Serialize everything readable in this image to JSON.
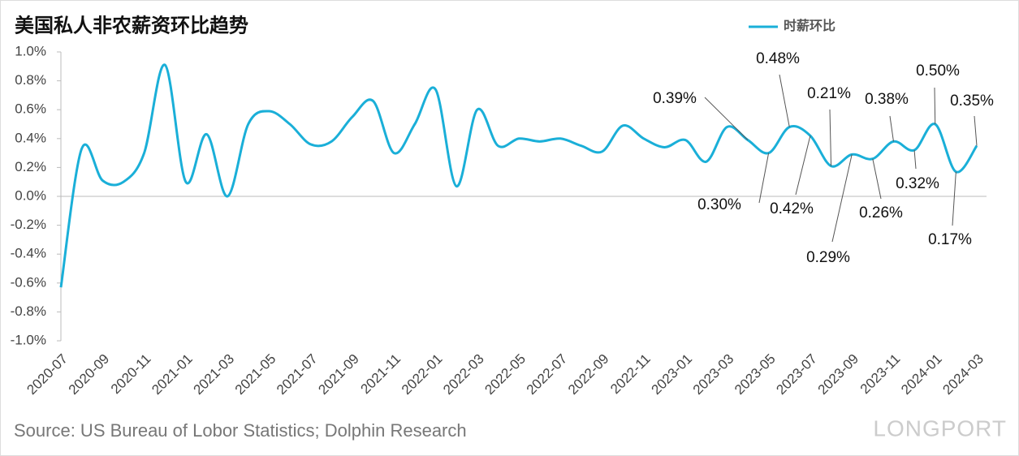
{
  "chart_data": {
    "type": "line",
    "title": "美国私人非农薪资环比趋势",
    "source": "Source: US Bureau of Lobor Statistics; Dolphin Research",
    "watermark": "LONGPORT",
    "categories": [
      "2020-07",
      null,
      "2020-09",
      null,
      "2020-11",
      null,
      "2021-01",
      null,
      "2021-03",
      null,
      "2021-05",
      null,
      "2021-07",
      null,
      "2021-09",
      null,
      "2021-11",
      null,
      "2022-01",
      null,
      "2022-03",
      null,
      "2022-05",
      null,
      "2022-07",
      null,
      "2022-09",
      null,
      "2022-11",
      null,
      "2023-01",
      null,
      "2023-03",
      null,
      "2023-05",
      null,
      "2023-07",
      null,
      "2023-09",
      null,
      "2023-11",
      null,
      "2024-01",
      null,
      "2024-03"
    ],
    "series": [
      {
        "name": "时薪环比",
        "color": "#1aafd8",
        "values": [
          -0.63,
          0.33,
          0.11,
          0.1,
          0.3,
          0.91,
          0.1,
          0.43,
          0.0,
          0.5,
          0.59,
          0.5,
          0.36,
          0.38,
          0.55,
          0.66,
          0.3,
          0.5,
          0.74,
          0.07,
          0.6,
          0.35,
          0.4,
          0.38,
          0.4,
          0.35,
          0.31,
          0.49,
          0.4,
          0.34,
          0.39,
          0.24,
          0.48,
          0.39,
          0.3,
          0.48,
          0.42,
          0.21,
          0.29,
          0.26,
          0.38,
          0.32,
          0.5,
          0.17,
          0.35
        ],
        "value_labels": [
          null,
          null,
          null,
          null,
          null,
          null,
          null,
          null,
          null,
          null,
          null,
          null,
          null,
          null,
          null,
          null,
          null,
          null,
          null,
          null,
          null,
          null,
          null,
          null,
          null,
          null,
          null,
          null,
          null,
          null,
          null,
          null,
          null,
          "0.39%",
          "0.30%",
          "0.48%",
          "0.42%",
          "0.21%",
          "0.29%",
          "0.26%",
          "0.38%",
          "0.32%",
          "0.50%",
          "0.17%",
          "0.35%"
        ]
      }
    ],
    "ylim": [
      -1,
      1
    ],
    "yticks": [
      {
        "value": -1,
        "label": "-1.0%"
      },
      {
        "value": -0.8,
        "label": "-0.8%"
      },
      {
        "value": -0.6,
        "label": "-0.6%"
      },
      {
        "value": -0.4,
        "label": "-0.4%"
      },
      {
        "value": -0.2,
        "label": "-0.2%"
      },
      {
        "value": 0,
        "label": "0.0%"
      },
      {
        "value": 0.2,
        "label": "0.2%"
      },
      {
        "value": 0.4,
        "label": "0.4%"
      },
      {
        "value": 0.6,
        "label": "0.6%"
      },
      {
        "value": 0.8,
        "label": "0.8%"
      },
      {
        "value": 1,
        "label": "1.0%"
      }
    ],
    "legend": "top-right"
  }
}
